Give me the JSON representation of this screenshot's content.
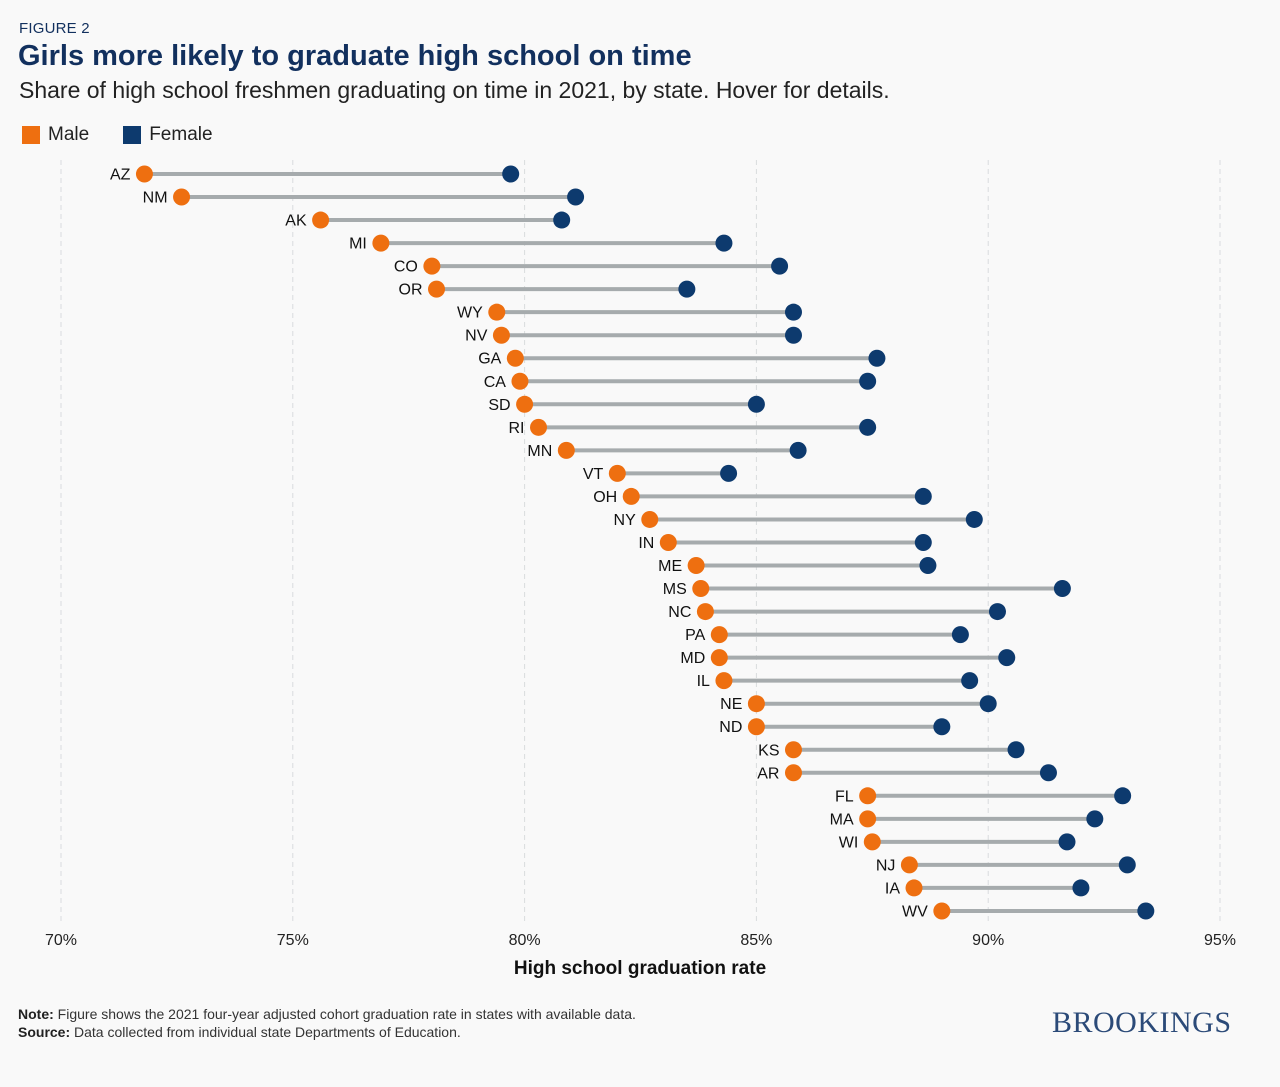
{
  "header": {
    "kicker": "FIGURE 2",
    "title": "Girls more likely to graduate high school on time",
    "subtitle": "Share of high school freshmen graduating on time in 2021, by state. Hover for details."
  },
  "colors": {
    "male": "#ee6f10",
    "female": "#0d3a6e",
    "connector": "#a6abad",
    "grid": "#d9dcde"
  },
  "chart_data": {
    "type": "dumbbell",
    "title": "Girls more likely to graduate high school on time",
    "xlabel": "High school graduation rate",
    "ylabel": "",
    "xlim": [
      70,
      95
    ],
    "xticks": [
      70,
      75,
      80,
      85,
      90,
      95
    ],
    "tick_labels": [
      "70%",
      "75%",
      "80%",
      "85%",
      "90%",
      "95%"
    ],
    "grid": true,
    "legend": {
      "position": "top-left",
      "entries": [
        "Male",
        "Female"
      ]
    },
    "series": [
      {
        "name": "Male",
        "color": "#ee6f10"
      },
      {
        "name": "Female",
        "color": "#0d3a6e"
      }
    ],
    "rows": [
      {
        "label": "AZ",
        "male": 71.8,
        "female": 79.7
      },
      {
        "label": "NM",
        "male": 72.6,
        "female": 81.1
      },
      {
        "label": "AK",
        "male": 75.6,
        "female": 80.8
      },
      {
        "label": "MI",
        "male": 76.9,
        "female": 84.3
      },
      {
        "label": "CO",
        "male": 78.0,
        "female": 85.5
      },
      {
        "label": "OR",
        "male": 78.1,
        "female": 83.5
      },
      {
        "label": "WY",
        "male": 79.4,
        "female": 85.8
      },
      {
        "label": "NV",
        "male": 79.5,
        "female": 85.8
      },
      {
        "label": "GA",
        "male": 79.8,
        "female": 87.6
      },
      {
        "label": "CA",
        "male": 79.9,
        "female": 87.4
      },
      {
        "label": "SD",
        "male": 80.0,
        "female": 85.0
      },
      {
        "label": "RI",
        "male": 80.3,
        "female": 87.4
      },
      {
        "label": "MN",
        "male": 80.9,
        "female": 85.9
      },
      {
        "label": "VT",
        "male": 82.0,
        "female": 84.4
      },
      {
        "label": "OH",
        "male": 82.3,
        "female": 88.6
      },
      {
        "label": "NY",
        "male": 82.7,
        "female": 89.7
      },
      {
        "label": "IN",
        "male": 83.1,
        "female": 88.6
      },
      {
        "label": "ME",
        "male": 83.7,
        "female": 88.7
      },
      {
        "label": "MS",
        "male": 83.8,
        "female": 91.6
      },
      {
        "label": "NC",
        "male": 83.9,
        "female": 90.2
      },
      {
        "label": "PA",
        "male": 84.2,
        "female": 89.4
      },
      {
        "label": "MD",
        "male": 84.2,
        "female": 90.4
      },
      {
        "label": "IL",
        "male": 84.3,
        "female": 89.6
      },
      {
        "label": "NE",
        "male": 85.0,
        "female": 90.0
      },
      {
        "label": "ND",
        "male": 85.0,
        "female": 89.0
      },
      {
        "label": "KS",
        "male": 85.8,
        "female": 90.6
      },
      {
        "label": "AR",
        "male": 85.8,
        "female": 91.3
      },
      {
        "label": "FL",
        "male": 87.4,
        "female": 92.9
      },
      {
        "label": "MA",
        "male": 87.4,
        "female": 92.3
      },
      {
        "label": "WI",
        "male": 87.5,
        "female": 91.7
      },
      {
        "label": "NJ",
        "male": 88.3,
        "female": 93.0
      },
      {
        "label": "IA",
        "male": 88.4,
        "female": 92.0
      },
      {
        "label": "WV",
        "male": 89.0,
        "female": 93.4
      }
    ]
  },
  "footer": {
    "note_label": "Note:",
    "note_text": " Figure shows the 2021 four-year adjusted cohort graduation rate in states with available data.",
    "source_label": "Source:",
    "source_text": " Data collected from individual state Departments of Education.",
    "logo": "BROOKINGS"
  }
}
